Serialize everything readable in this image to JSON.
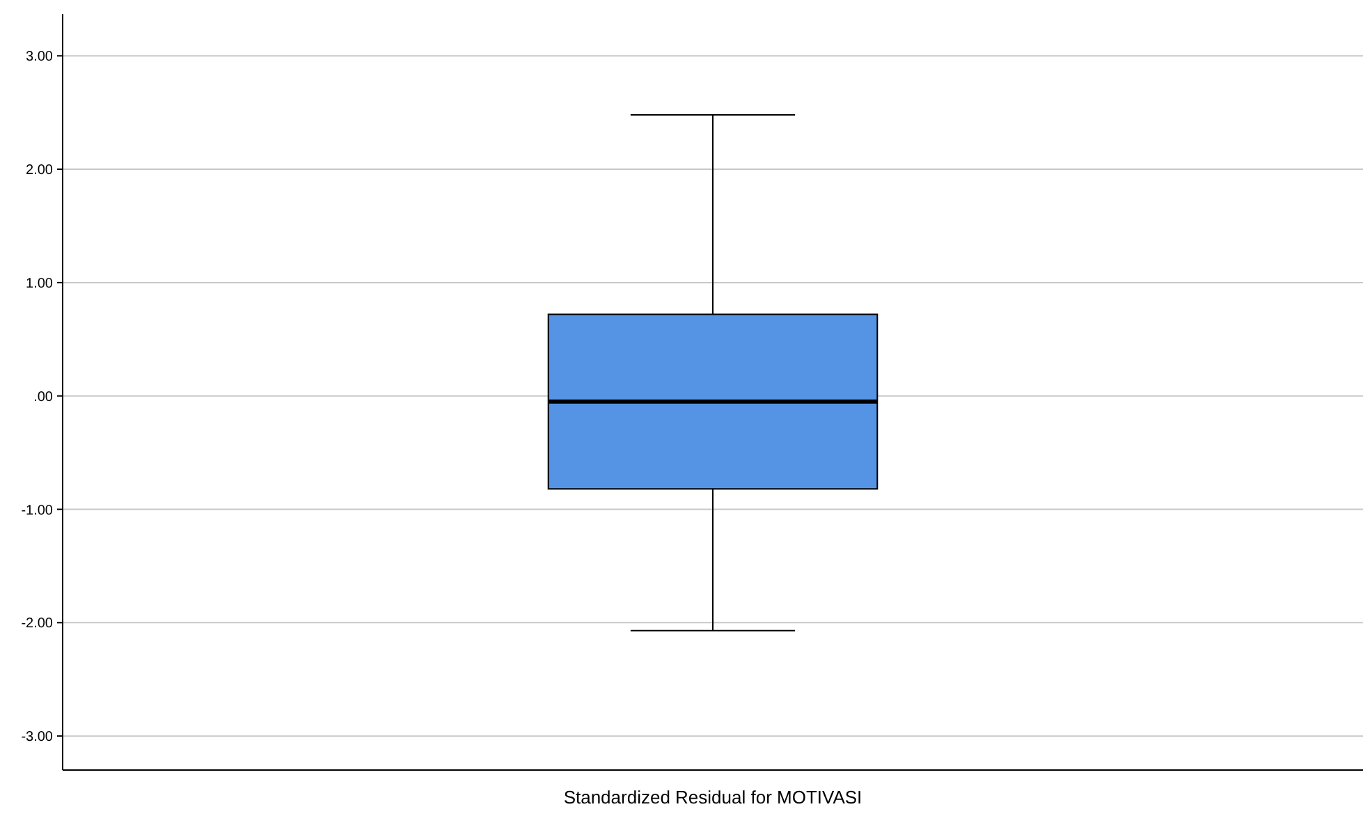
{
  "chart_data": {
    "type": "box",
    "categories": [
      "Standardized Residual for MOTIVASI"
    ],
    "boxes": [
      {
        "low": -2.07,
        "q1": -0.82,
        "median": -0.05,
        "q3": 0.72,
        "high": 2.48
      }
    ],
    "color": "#5594e4",
    "ylim": [
      -3.3,
      3.37
    ],
    "yticks": [
      {
        "value": -3,
        "label": "-3.00"
      },
      {
        "value": -2,
        "label": "-2.00"
      },
      {
        "value": -1,
        "label": "-1.00"
      },
      {
        "value": 0,
        "label": ".00"
      },
      {
        "value": 1,
        "label": "1.00"
      },
      {
        "value": 2,
        "label": "2.00"
      },
      {
        "value": 3,
        "label": "3.00"
      }
    ],
    "grid": "y"
  }
}
